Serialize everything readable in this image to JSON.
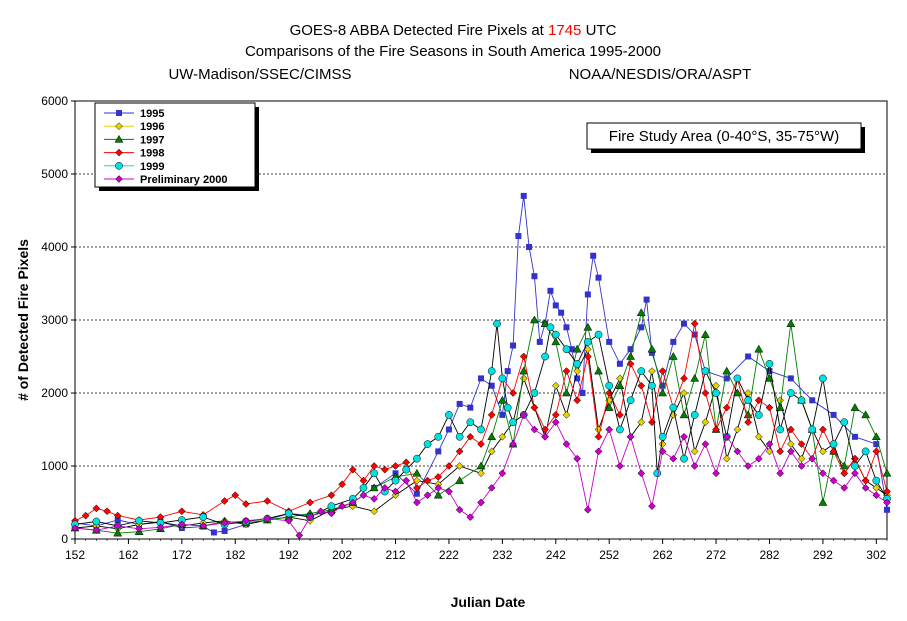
{
  "chart_data": {
    "type": "line",
    "title_line1_pre": "GOES-8 ABBA Detected Fire Pixels at ",
    "title_line1_time": "1745",
    "title_line1_post": " UTC",
    "title_line2": "Comparisons of the Fire Seasons in South America 1995-2000",
    "credit_left": "UW-Madison/SSEC/CIMSS",
    "credit_right": "NOAA/NESDIS/ORA/ASPT",
    "annotation": "Fire Study Area (0-40°S, 35-75°W)",
    "xlabel": "Julian Date",
    "ylabel": "# of Detected Fire Pixels",
    "xlim": [
      152,
      304
    ],
    "ylim": [
      0,
      6000
    ],
    "xticks": [
      152,
      162,
      172,
      182,
      192,
      202,
      212,
      222,
      232,
      242,
      252,
      262,
      272,
      282,
      292,
      302
    ],
    "yticks": [
      0,
      1000,
      2000,
      3000,
      4000,
      5000,
      6000
    ],
    "legend_position": "top-left",
    "colors": {
      "title_accent": "#ff0000",
      "credit_left": "#ff0000",
      "credit_right": "#0000ff",
      "grid": "#000000"
    },
    "series": [
      {
        "name": "1995",
        "color": "#3333cc",
        "marker": "square",
        "x": [
          152,
          156,
          160,
          164,
          168,
          172,
          176,
          178,
          180,
          184,
          188,
          192,
          196,
          200,
          204,
          208,
          212,
          216,
          220,
          222,
          224,
          226,
          228,
          230,
          232,
          233,
          234,
          235,
          236,
          237,
          238,
          239,
          240,
          241,
          242,
          243,
          244,
          245,
          246,
          247,
          248,
          249,
          250,
          252,
          254,
          256,
          258,
          259,
          260,
          262,
          264,
          266,
          268,
          270,
          274,
          278,
          282,
          286,
          290,
          294,
          298,
          302,
          304
        ],
        "y": [
          220,
          180,
          260,
          200,
          240,
          150,
          170,
          90,
          110,
          200,
          260,
          350,
          320,
          380,
          500,
          700,
          900,
          620,
          1200,
          1500,
          1850,
          1800,
          2200,
          2100,
          1700,
          2300,
          2650,
          4150,
          4700,
          4000,
          3600,
          2700,
          2950,
          3400,
          3200,
          3100,
          2900,
          2600,
          2200,
          2000,
          3350,
          3880,
          3580,
          2700,
          2400,
          2600,
          2900,
          3280,
          2550,
          2100,
          2700,
          2950,
          2800,
          2300,
          2200,
          2500,
          2300,
          2200,
          1900,
          1700,
          1400,
          1300,
          400
        ]
      },
      {
        "name": "1996",
        "color": "#e6d200",
        "marker": "diamond",
        "x": [
          152,
          156,
          160,
          164,
          168,
          172,
          176,
          180,
          184,
          188,
          192,
          196,
          200,
          204,
          208,
          212,
          216,
          220,
          224,
          228,
          230,
          232,
          234,
          236,
          238,
          240,
          242,
          244,
          246,
          248,
          250,
          252,
          254,
          256,
          258,
          260,
          262,
          264,
          266,
          268,
          270,
          272,
          274,
          276,
          278,
          280,
          282,
          284,
          286,
          288,
          290,
          292,
          294,
          296,
          298,
          300,
          302,
          304
        ],
        "y": [
          150,
          180,
          140,
          200,
          230,
          180,
          220,
          250,
          200,
          260,
          300,
          250,
          400,
          450,
          380,
          600,
          800,
          750,
          1000,
          900,
          1200,
          1400,
          1600,
          2200,
          1800,
          1400,
          2100,
          1700,
          2300,
          2600,
          1500,
          1900,
          2200,
          1400,
          1600,
          2300,
          1300,
          1700,
          2000,
          1200,
          1600,
          2100,
          1100,
          1500,
          2000,
          1400,
          1200,
          1900,
          1300,
          1100,
          1500,
          1200,
          1300,
          900,
          1100,
          800,
          700,
          600
        ]
      },
      {
        "name": "1997",
        "color": "#008000",
        "marker": "triangle",
        "x": [
          152,
          156,
          160,
          164,
          168,
          172,
          176,
          180,
          184,
          188,
          192,
          196,
          200,
          204,
          208,
          212,
          216,
          220,
          224,
          228,
          230,
          232,
          234,
          236,
          238,
          240,
          242,
          244,
          246,
          248,
          250,
          252,
          254,
          256,
          258,
          260,
          262,
          264,
          266,
          268,
          270,
          272,
          274,
          276,
          278,
          280,
          282,
          284,
          286,
          288,
          290,
          292,
          294,
          296,
          298,
          300,
          302,
          304
        ],
        "y": [
          150,
          120,
          80,
          100,
          140,
          200,
          180,
          240,
          220,
          260,
          300,
          350,
          400,
          500,
          700,
          850,
          900,
          600,
          800,
          1000,
          1400,
          1900,
          1300,
          2300,
          3000,
          2950,
          2700,
          2000,
          2600,
          2900,
          2300,
          1800,
          2100,
          2500,
          3100,
          2600,
          2000,
          2500,
          1700,
          2200,
          2800,
          1500,
          2300,
          2000,
          1700,
          2600,
          2200,
          1800,
          2950,
          1900,
          1500,
          500,
          1200,
          1000,
          1800,
          1700,
          1400,
          900
        ]
      },
      {
        "name": "1998",
        "color": "#ff0000",
        "marker": "diamond",
        "x": [
          152,
          154,
          156,
          158,
          160,
          164,
          168,
          172,
          176,
          180,
          182,
          184,
          188,
          192,
          196,
          200,
          202,
          204,
          206,
          208,
          210,
          212,
          214,
          216,
          218,
          220,
          222,
          224,
          226,
          228,
          230,
          232,
          234,
          236,
          238,
          240,
          242,
          244,
          246,
          248,
          250,
          252,
          254,
          256,
          258,
          260,
          262,
          264,
          266,
          268,
          270,
          272,
          274,
          276,
          278,
          280,
          282,
          284,
          286,
          288,
          290,
          292,
          294,
          296,
          298,
          300,
          302,
          304
        ],
        "y": [
          250,
          320,
          420,
          380,
          320,
          260,
          300,
          380,
          330,
          520,
          600,
          480,
          520,
          380,
          500,
          600,
          750,
          950,
          800,
          1000,
          950,
          1000,
          1050,
          700,
          800,
          850,
          1000,
          1200,
          1400,
          1300,
          1700,
          2200,
          2000,
          2500,
          1800,
          1500,
          1700,
          2300,
          1900,
          2500,
          1400,
          2000,
          1700,
          2400,
          2100,
          1600,
          2300,
          1800,
          2200,
          2950,
          2000,
          1500,
          1800,
          2200,
          1600,
          1900,
          1800,
          1200,
          1500,
          1300,
          1100,
          1500,
          1200,
          900,
          1100,
          800,
          1200,
          650
        ]
      },
      {
        "name": "1999",
        "color": "#00e0e0",
        "marker": "circle",
        "x": [
          152,
          156,
          160,
          164,
          168,
          172,
          176,
          180,
          184,
          188,
          192,
          196,
          200,
          204,
          206,
          208,
          210,
          212,
          214,
          216,
          218,
          220,
          222,
          224,
          226,
          228,
          230,
          231,
          232,
          233,
          234,
          236,
          238,
          240,
          241,
          242,
          244,
          246,
          248,
          250,
          252,
          254,
          256,
          258,
          260,
          261,
          262,
          264,
          266,
          268,
          270,
          272,
          274,
          276,
          278,
          280,
          282,
          284,
          286,
          288,
          290,
          292,
          294,
          296,
          298,
          300,
          302,
          304
        ],
        "y": [
          200,
          240,
          180,
          250,
          220,
          260,
          300,
          200,
          240,
          280,
          350,
          300,
          450,
          550,
          700,
          900,
          650,
          800,
          950,
          1100,
          1300,
          1400,
          1700,
          1400,
          1600,
          1500,
          2300,
          2950,
          2200,
          1800,
          1600,
          1700,
          2000,
          2500,
          2900,
          2800,
          2600,
          2400,
          2700,
          2800,
          2100,
          1500,
          1900,
          2300,
          2100,
          900,
          1400,
          1800,
          1100,
          1700,
          2300,
          2000,
          1400,
          2200,
          1900,
          1700,
          2400,
          1500,
          2000,
          1900,
          1500,
          2200,
          1300,
          1600,
          1000,
          1200,
          800,
          550
        ]
      },
      {
        "name": "Preliminary 2000",
        "color": "#cc00cc",
        "marker": "diamond",
        "x": [
          152,
          156,
          160,
          164,
          168,
          172,
          176,
          180,
          184,
          188,
          192,
          194,
          196,
          198,
          200,
          202,
          204,
          206,
          208,
          210,
          212,
          214,
          216,
          218,
          220,
          222,
          224,
          226,
          228,
          230,
          232,
          234,
          236,
          238,
          240,
          242,
          244,
          246,
          248,
          250,
          252,
          254,
          256,
          258,
          260,
          262,
          264,
          266,
          268,
          270,
          272,
          274,
          276,
          278,
          280,
          282,
          284,
          286,
          288,
          290,
          292,
          294,
          296,
          298,
          300,
          302,
          304
        ],
        "y": [
          150,
          120,
          180,
          140,
          160,
          200,
          180,
          220,
          250,
          280,
          250,
          50,
          300,
          380,
          350,
          450,
          500,
          600,
          550,
          700,
          650,
          800,
          500,
          600,
          700,
          650,
          400,
          300,
          500,
          700,
          900,
          1300,
          1700,
          1500,
          1400,
          1600,
          1300,
          1100,
          400,
          1200,
          1500,
          1000,
          1400,
          900,
          450,
          1200,
          1100,
          1400,
          1000,
          1300,
          900,
          1400,
          1200,
          1000,
          1100,
          1300,
          900,
          1200,
          1000,
          1100,
          900,
          800,
          700,
          900,
          700,
          600,
          500
        ]
      }
    ]
  }
}
